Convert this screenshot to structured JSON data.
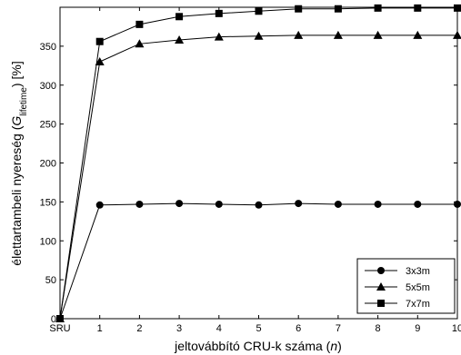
{
  "chart_data": {
    "type": "line",
    "xlabel": {
      "main": "jeltovábbító CRU-k száma (",
      "italic": "n",
      "end": ")"
    },
    "ylabel": {
      "pre": "élettartambeli nyereség (",
      "sym": "G",
      "sub": "lifetime",
      "post": ") [%]"
    },
    "x_ticks": [
      "SRU",
      "1",
      "2",
      "3",
      "4",
      "5",
      "6",
      "7",
      "8",
      "9",
      "10"
    ],
    "y_ticks": [
      0,
      50,
      100,
      150,
      200,
      250,
      300,
      350
    ],
    "xlim": [
      0,
      10
    ],
    "ylim": [
      0,
      400
    ],
    "grid": false,
    "legend_position": "bottom-right",
    "series": [
      {
        "name": "3x3m",
        "marker": "circle",
        "values": [
          0,
          146,
          147,
          148,
          147,
          146,
          148,
          147,
          147,
          147,
          147
        ]
      },
      {
        "name": "5x5m",
        "marker": "triangle",
        "values": [
          0,
          330,
          353,
          358,
          362,
          363,
          364,
          364,
          364,
          364,
          364
        ]
      },
      {
        "name": "7x7m",
        "marker": "square",
        "values": [
          0,
          356,
          378,
          388,
          392,
          395,
          398,
          398,
          399,
          399,
          399
        ]
      }
    ]
  }
}
